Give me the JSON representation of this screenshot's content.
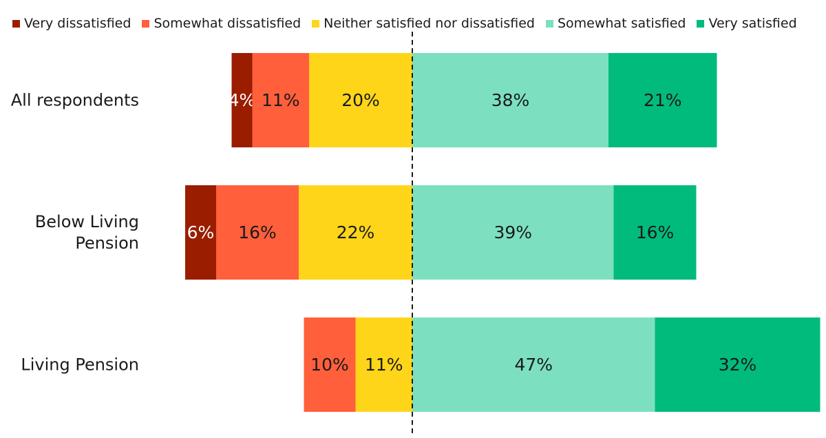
{
  "chart_data": {
    "type": "bar",
    "orientation": "horizontal",
    "stacked": "diverging",
    "categories": [
      "All respondents",
      "Below Living Pension",
      "Living Pension"
    ],
    "series": [
      {
        "name": "Very dissatisfied",
        "values": [
          4,
          6,
          0
        ],
        "color": "#9a1d00"
      },
      {
        "name": "Somewhat dissatisfied",
        "values": [
          11,
          16,
          10
        ],
        "color": "#ff5f3b"
      },
      {
        "name": "Neither satisfied nor dissatisfied",
        "values": [
          20,
          22,
          11
        ],
        "color": "#ffd519"
      },
      {
        "name": "Somewhat satisfied",
        "values": [
          38,
          39,
          47
        ],
        "color": "#7ce0c0"
      },
      {
        "name": "Very satisfied",
        "values": [
          21,
          16,
          32
        ],
        "color": "#00bb7c"
      }
    ],
    "data_labels": [
      [
        "4%",
        "6%",
        ""
      ],
      [
        "11%",
        "16%",
        "10%"
      ],
      [
        "20%",
        "22%",
        "11%"
      ],
      [
        "38%",
        "39%",
        "47%"
      ],
      [
        "21%",
        "16%",
        "32%"
      ]
    ],
    "label_colors": [
      "#ffffff",
      "#1a1a1a",
      "#1a1a1a",
      "#1a1a1a",
      "#1a1a1a"
    ],
    "negative_series_count": 3,
    "divider": "dashed",
    "legend_position": "top",
    "grid": false,
    "title": "",
    "xlabel": "",
    "ylabel": ""
  }
}
